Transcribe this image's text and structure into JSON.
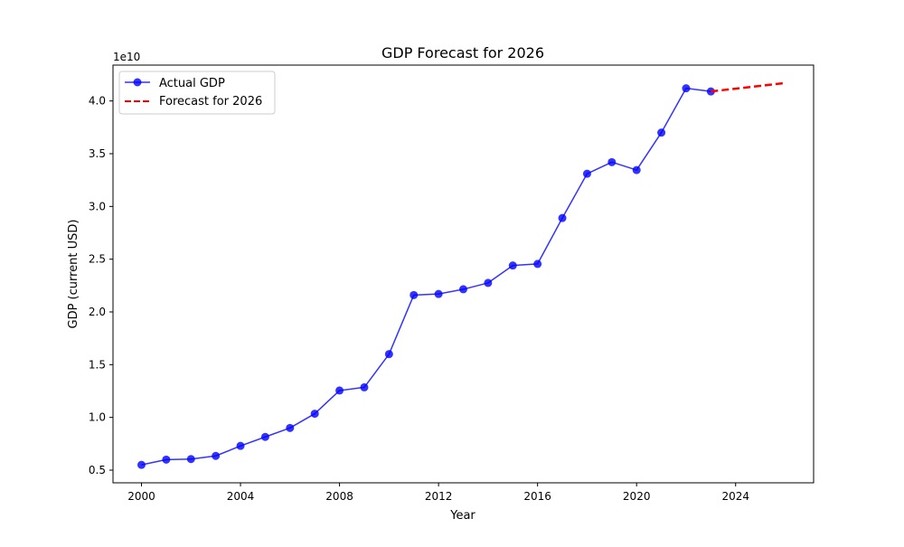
{
  "chart_data": {
    "type": "line",
    "title": "GDP Forecast for 2026",
    "xlabel": "Year",
    "ylabel": "GDP (current USD)",
    "y_offset_label": "1e10",
    "xlim": [
      1998.85,
      2027.15
    ],
    "ylim": [
      0.38,
      4.34
    ],
    "y_scale_factor": 10000000000,
    "x_ticks": [
      2000,
      2004,
      2008,
      2012,
      2016,
      2020,
      2024
    ],
    "y_ticks": [
      0.5,
      1.0,
      1.5,
      2.0,
      2.5,
      3.0,
      3.5,
      4.0
    ],
    "y_tick_labels": [
      "0.5",
      "1.0",
      "1.5",
      "2.0",
      "2.5",
      "3.0",
      "3.5",
      "4.0"
    ],
    "grid": false,
    "legend_position": "top-left",
    "series": [
      {
        "name": "Actual GDP",
        "color": "#0000ff",
        "style": "solid-with-markers",
        "x": [
          2000,
          2001,
          2002,
          2003,
          2004,
          2005,
          2006,
          2007,
          2008,
          2009,
          2010,
          2011,
          2012,
          2013,
          2014,
          2015,
          2016,
          2017,
          2018,
          2019,
          2020,
          2021,
          2022,
          2023
        ],
        "y": [
          0.55,
          0.6,
          0.605,
          0.635,
          0.73,
          0.815,
          0.9,
          1.035,
          1.255,
          1.285,
          1.6,
          2.16,
          2.17,
          2.215,
          2.275,
          2.44,
          2.455,
          2.89,
          3.31,
          3.42,
          3.345,
          3.7,
          4.12,
          4.09
        ]
      },
      {
        "name": "Forecast for 2026",
        "color": "#ff0000",
        "style": "dashed",
        "x": [
          2023,
          2026
        ],
        "y": [
          4.09,
          4.17
        ]
      }
    ]
  }
}
